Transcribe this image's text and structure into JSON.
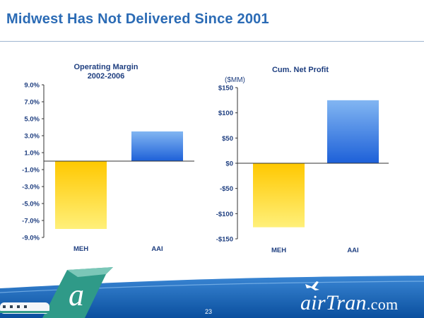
{
  "slide": {
    "title": "Midwest Has Not Delivered Since 2001",
    "page_number": "23",
    "brand": {
      "name_a": "air",
      "name_b": "Tran",
      "tld": ".com"
    }
  },
  "colors": {
    "aai_bar": "#3a7be0",
    "meh_bar": "#ffd21f",
    "title": "#2b6bb5",
    "axis_text": "#1f3f80",
    "footer": "#0f62b6"
  },
  "chart_data": [
    {
      "type": "bar",
      "title": "Operating Margin",
      "subtitle": "2002-2006",
      "unit_label": "",
      "categories": [
        "MEH",
        "AAI"
      ],
      "values": [
        -8.0,
        3.5
      ],
      "ylim": [
        -9.0,
        9.0
      ],
      "yticks": [
        9.0,
        7.0,
        5.0,
        3.0,
        1.0,
        -1.0,
        -3.0,
        -5.0,
        -7.0,
        -9.0
      ],
      "ytick_labels": [
        "9.0%",
        "7.0%",
        "5.0%",
        "3.0%",
        "1.0%",
        "-1.0%",
        "-3.0%",
        "-5.0%",
        "-7.0%",
        "-9.0%"
      ],
      "grid": false
    },
    {
      "type": "bar",
      "title": "Cum. Net Profit",
      "subtitle": "",
      "unit_label": "($MM)",
      "categories": [
        "MEH",
        "AAI"
      ],
      "values": [
        -127,
        125
      ],
      "ylim": [
        -150,
        150
      ],
      "yticks": [
        150,
        100,
        50,
        0,
        -50,
        -100,
        -150
      ],
      "ytick_labels": [
        "$150",
        "$100",
        "$50",
        "$0",
        "-$50",
        "-$100",
        "-$150"
      ],
      "grid": false
    }
  ]
}
